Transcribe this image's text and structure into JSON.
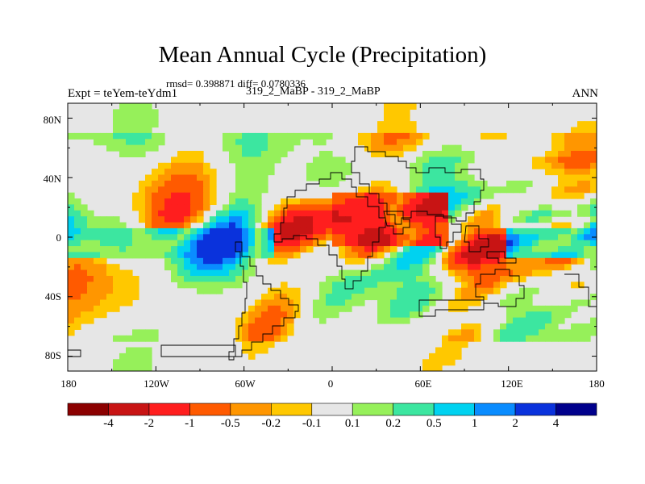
{
  "title": "Mean Annual Cycle (Precipitation)",
  "stats_line": "rmsd= 0.398871 diff= 0.0780336",
  "experiment_label": "Expt = teYem-teYdm1",
  "comparison_label": "319_2_MaBP - 319_2_MaBP",
  "season_label": "ANN",
  "chart_data": {
    "type": "heatmap",
    "title": "Mean Annual Cycle (Precipitation)",
    "xlabel": "",
    "ylabel": "",
    "xlim": [
      -180,
      180
    ],
    "ylim": [
      -90,
      90
    ],
    "x_tick_labels": [
      "180",
      "120W",
      "60W",
      "0",
      "60E",
      "120E",
      "180"
    ],
    "y_tick_labels": [
      "80N",
      "40N",
      "0",
      "40S",
      "80S"
    ],
    "colorbar": {
      "labels": [
        "-4",
        "-2",
        "-1",
        "-0.5",
        "-0.2",
        "-0.1",
        "0.1",
        "0.2",
        "0.5",
        "1",
        "2",
        "4"
      ],
      "colors": [
        "#8b0000",
        "#c81414",
        "#ff1e1e",
        "#ff5a00",
        "#ff9600",
        "#ffc800",
        "#e6e6e6",
        "#96f05a",
        "#3ce6a0",
        "#00d2f0",
        "#0a8cff",
        "#0a32dc",
        "#00008c"
      ]
    },
    "note": "Precipitation difference field; continental outlines drawn over a shaded lat-lon grid"
  }
}
